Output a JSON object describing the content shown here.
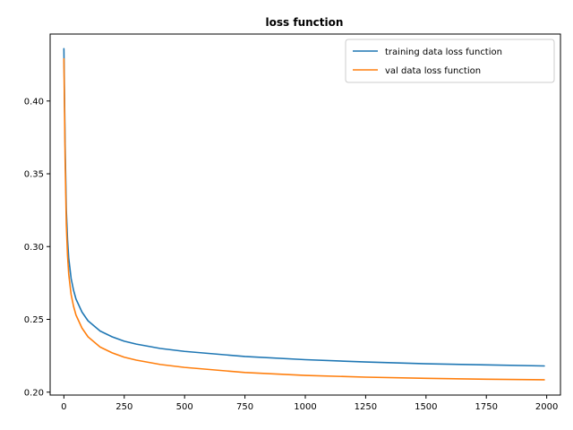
{
  "chart_data": {
    "type": "line",
    "title": "loss function",
    "xlabel": "",
    "ylabel": "",
    "xlim": [
      -57,
      2057
    ],
    "ylim": [
      0.198,
      0.446
    ],
    "xticks": [
      0,
      250,
      500,
      750,
      1000,
      1250,
      1500,
      1750,
      2000
    ],
    "xtick_labels": [
      "0",
      "250",
      "500",
      "750",
      "1000",
      "1250",
      "1500",
      "1750",
      "2000"
    ],
    "yticks": [
      0.2,
      0.25,
      0.3,
      0.35,
      0.4
    ],
    "ytick_labels": [
      "0.20",
      "0.25",
      "0.30",
      "0.35",
      "0.40"
    ],
    "grid": false,
    "legend_position": "top-right",
    "series": [
      {
        "name": "training data loss function",
        "color": "#1f77b4",
        "x": [
          0,
          5,
          10,
          15,
          20,
          30,
          40,
          50,
          75,
          100,
          150,
          200,
          250,
          300,
          400,
          500,
          750,
          1000,
          1250,
          1500,
          1750,
          1990
        ],
        "y": [
          0.436,
          0.37,
          0.325,
          0.305,
          0.292,
          0.278,
          0.27,
          0.264,
          0.255,
          0.249,
          0.242,
          0.238,
          0.235,
          0.233,
          0.23,
          0.228,
          0.2245,
          0.2223,
          0.2207,
          0.2195,
          0.2187,
          0.218
        ]
      },
      {
        "name": "val data loss function",
        "color": "#ff7f0e",
        "x": [
          0,
          5,
          10,
          15,
          20,
          30,
          40,
          50,
          75,
          100,
          150,
          200,
          250,
          300,
          400,
          500,
          750,
          1000,
          1250,
          1500,
          1750,
          1990
        ],
        "y": [
          0.429,
          0.36,
          0.315,
          0.294,
          0.281,
          0.267,
          0.259,
          0.253,
          0.244,
          0.238,
          0.231,
          0.227,
          0.224,
          0.222,
          0.219,
          0.217,
          0.2135,
          0.2115,
          0.2103,
          0.2095,
          0.2089,
          0.2085
        ]
      }
    ]
  }
}
